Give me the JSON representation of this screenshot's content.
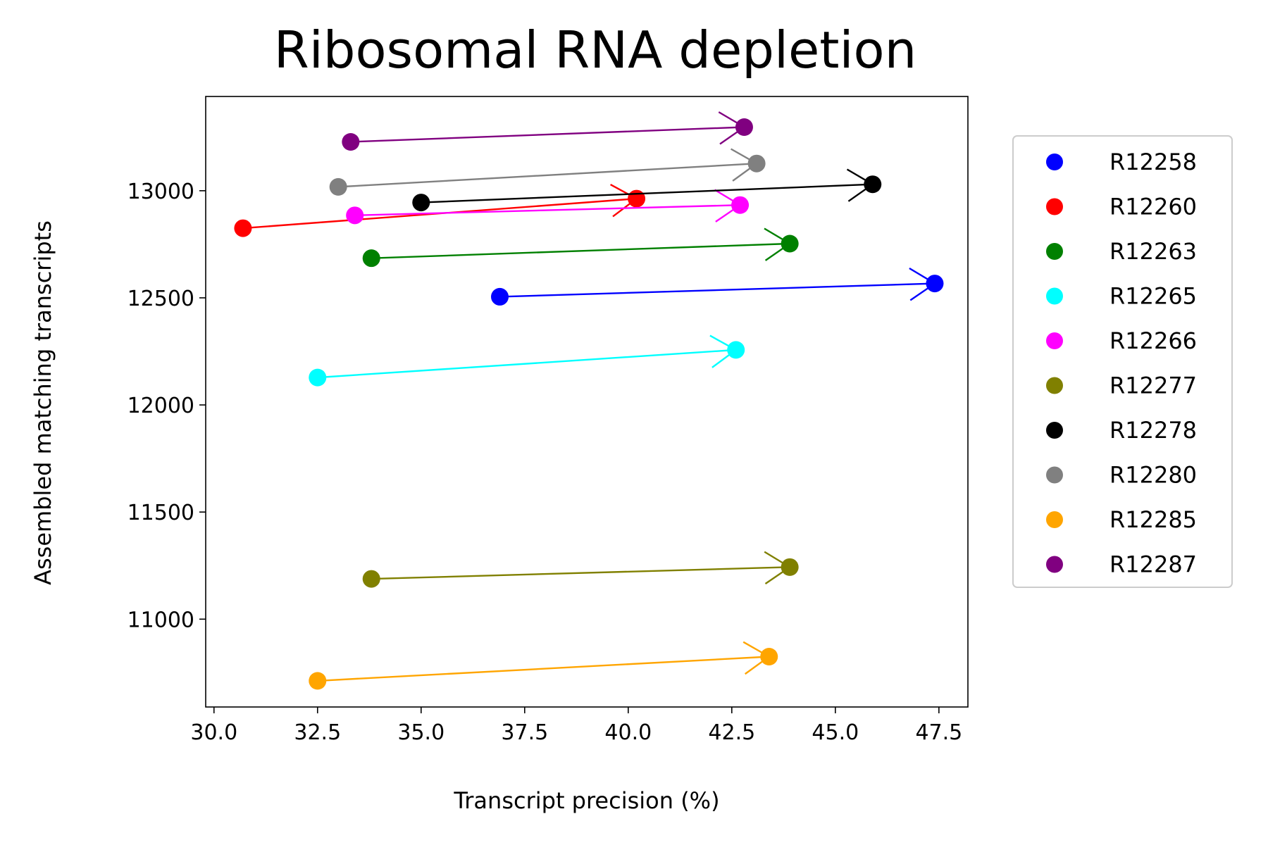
{
  "chart_data": {
    "type": "scatter",
    "title": "Ribosomal RNA depletion",
    "xlabel": "Transcript precision (%)",
    "ylabel": "Assembled matching transcripts",
    "xlim": [
      29.8,
      48.2
    ],
    "ylim": [
      10590,
      13440
    ],
    "xticks": [
      30.0,
      32.5,
      35.0,
      37.5,
      40.0,
      42.5,
      45.0,
      47.5
    ],
    "xtick_labels": [
      "30.0",
      "32.5",
      "35.0",
      "37.5",
      "40.0",
      "42.5",
      "45.0",
      "47.5"
    ],
    "yticks": [
      11000,
      11500,
      12000,
      12500,
      13000
    ],
    "ytick_labels": [
      "11000",
      "11500",
      "12000",
      "12500",
      "13000"
    ],
    "legend_position": "outside-right",
    "grid": false,
    "series": [
      {
        "name": "R12258",
        "color": "#0000ff",
        "start": [
          36.9,
          12505
        ],
        "end": [
          47.4,
          12567
        ]
      },
      {
        "name": "R12260",
        "color": "#ff0000",
        "start": [
          30.7,
          12825
        ],
        "end": [
          40.2,
          12963
        ]
      },
      {
        "name": "R12263",
        "color": "#008000",
        "start": [
          33.8,
          12685
        ],
        "end": [
          43.9,
          12753
        ]
      },
      {
        "name": "R12265",
        "color": "#00ffff",
        "start": [
          32.5,
          12128
        ],
        "end": [
          42.6,
          12257
        ]
      },
      {
        "name": "R12266",
        "color": "#ff00ff",
        "start": [
          33.4,
          12885
        ],
        "end": [
          42.7,
          12933
        ]
      },
      {
        "name": "R12277",
        "color": "#808000",
        "start": [
          33.8,
          11188
        ],
        "end": [
          43.9,
          11243
        ]
      },
      {
        "name": "R12278",
        "color": "#000000",
        "start": [
          35.0,
          12945
        ],
        "end": [
          45.9,
          13030
        ]
      },
      {
        "name": "R12280",
        "color": "#808080",
        "start": [
          33.0,
          13018
        ],
        "end": [
          43.1,
          13127
        ]
      },
      {
        "name": "R12285",
        "color": "#ffa500",
        "start": [
          32.5,
          10712
        ],
        "end": [
          43.4,
          10825
        ]
      },
      {
        "name": "R12287",
        "color": "#800080",
        "start": [
          33.3,
          13228
        ],
        "end": [
          42.8,
          13297
        ]
      }
    ]
  }
}
